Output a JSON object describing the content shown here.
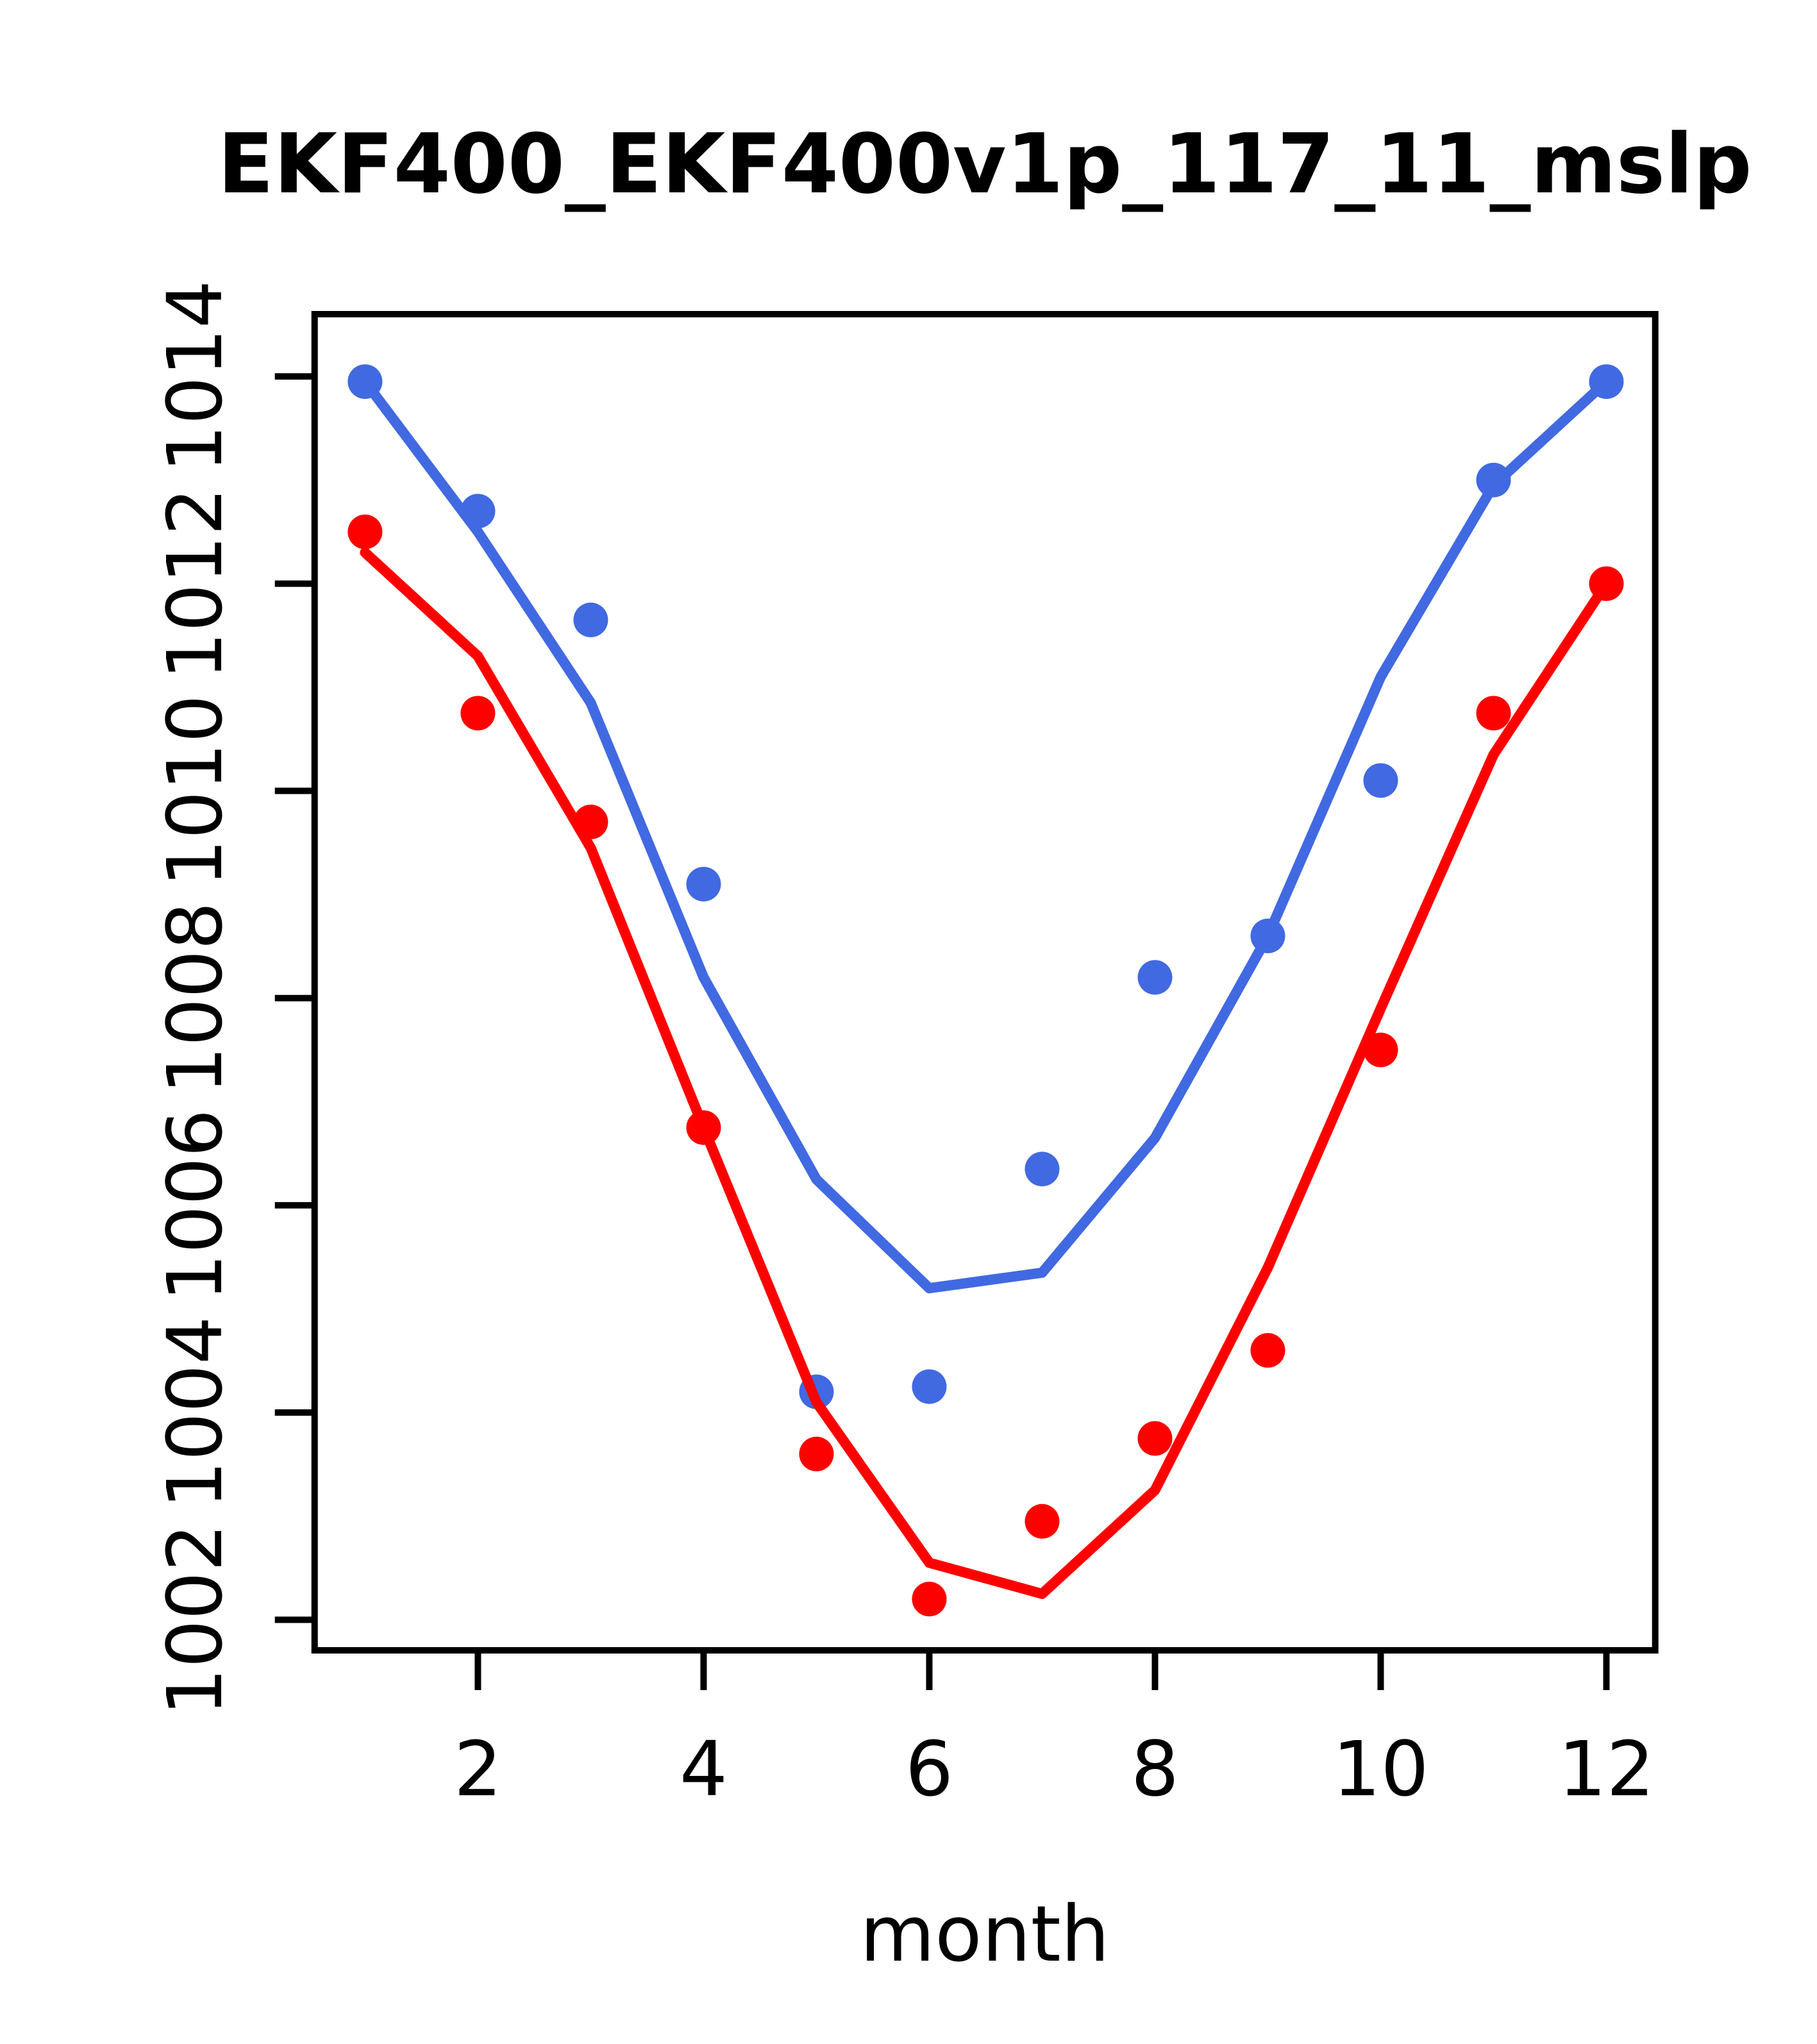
{
  "chart_data": {
    "type": "line",
    "title": "EKF400_EKF400v1p_117_11_mslp",
    "xlabel": "month",
    "ylabel": "",
    "x": [
      1,
      2,
      3,
      4,
      5,
      6,
      7,
      8,
      9,
      10,
      11,
      12
    ],
    "x_ticks": [
      2,
      4,
      6,
      8,
      10,
      12
    ],
    "y_ticks": [
      1002,
      1004,
      1006,
      1008,
      1010,
      1012,
      1014
    ],
    "xlim": [
      0.553,
      12.433
    ],
    "ylim": [
      1001.705,
      1014.601
    ],
    "grid": "off",
    "legend": "none",
    "series": [
      {
        "name": "blue-points",
        "style": "points",
        "color": "#4169E1",
        "values": [
          1013.95,
          1012.7,
          1011.65,
          1009.1,
          1004.2,
          1004.25,
          1006.35,
          1008.2,
          1008.6,
          1010.1,
          1013.0,
          1013.95
        ]
      },
      {
        "name": "red-points",
        "style": "points",
        "color": "#FF0000",
        "values": [
          1012.5,
          1010.75,
          1009.7,
          1006.75,
          1003.6,
          1002.2,
          1002.95,
          1003.75,
          1004.6,
          1007.5,
          1010.75,
          1012.0
        ]
      },
      {
        "name": "blue-line",
        "style": "line",
        "color": "#4169E1",
        "values": [
          1013.95,
          1012.5,
          1010.85,
          1008.2,
          1006.25,
          1005.2,
          1005.35,
          1006.65,
          1008.6,
          1011.1,
          1012.95,
          1013.95
        ]
      },
      {
        "name": "red-line",
        "style": "line",
        "color": "#FF0000",
        "values": [
          1012.3,
          1011.3,
          1009.45,
          1006.75,
          1004.1,
          1002.55,
          1002.25,
          1003.25,
          1005.4,
          1007.9,
          1010.35,
          1012.0
        ]
      }
    ],
    "axis_color": "#000000"
  }
}
